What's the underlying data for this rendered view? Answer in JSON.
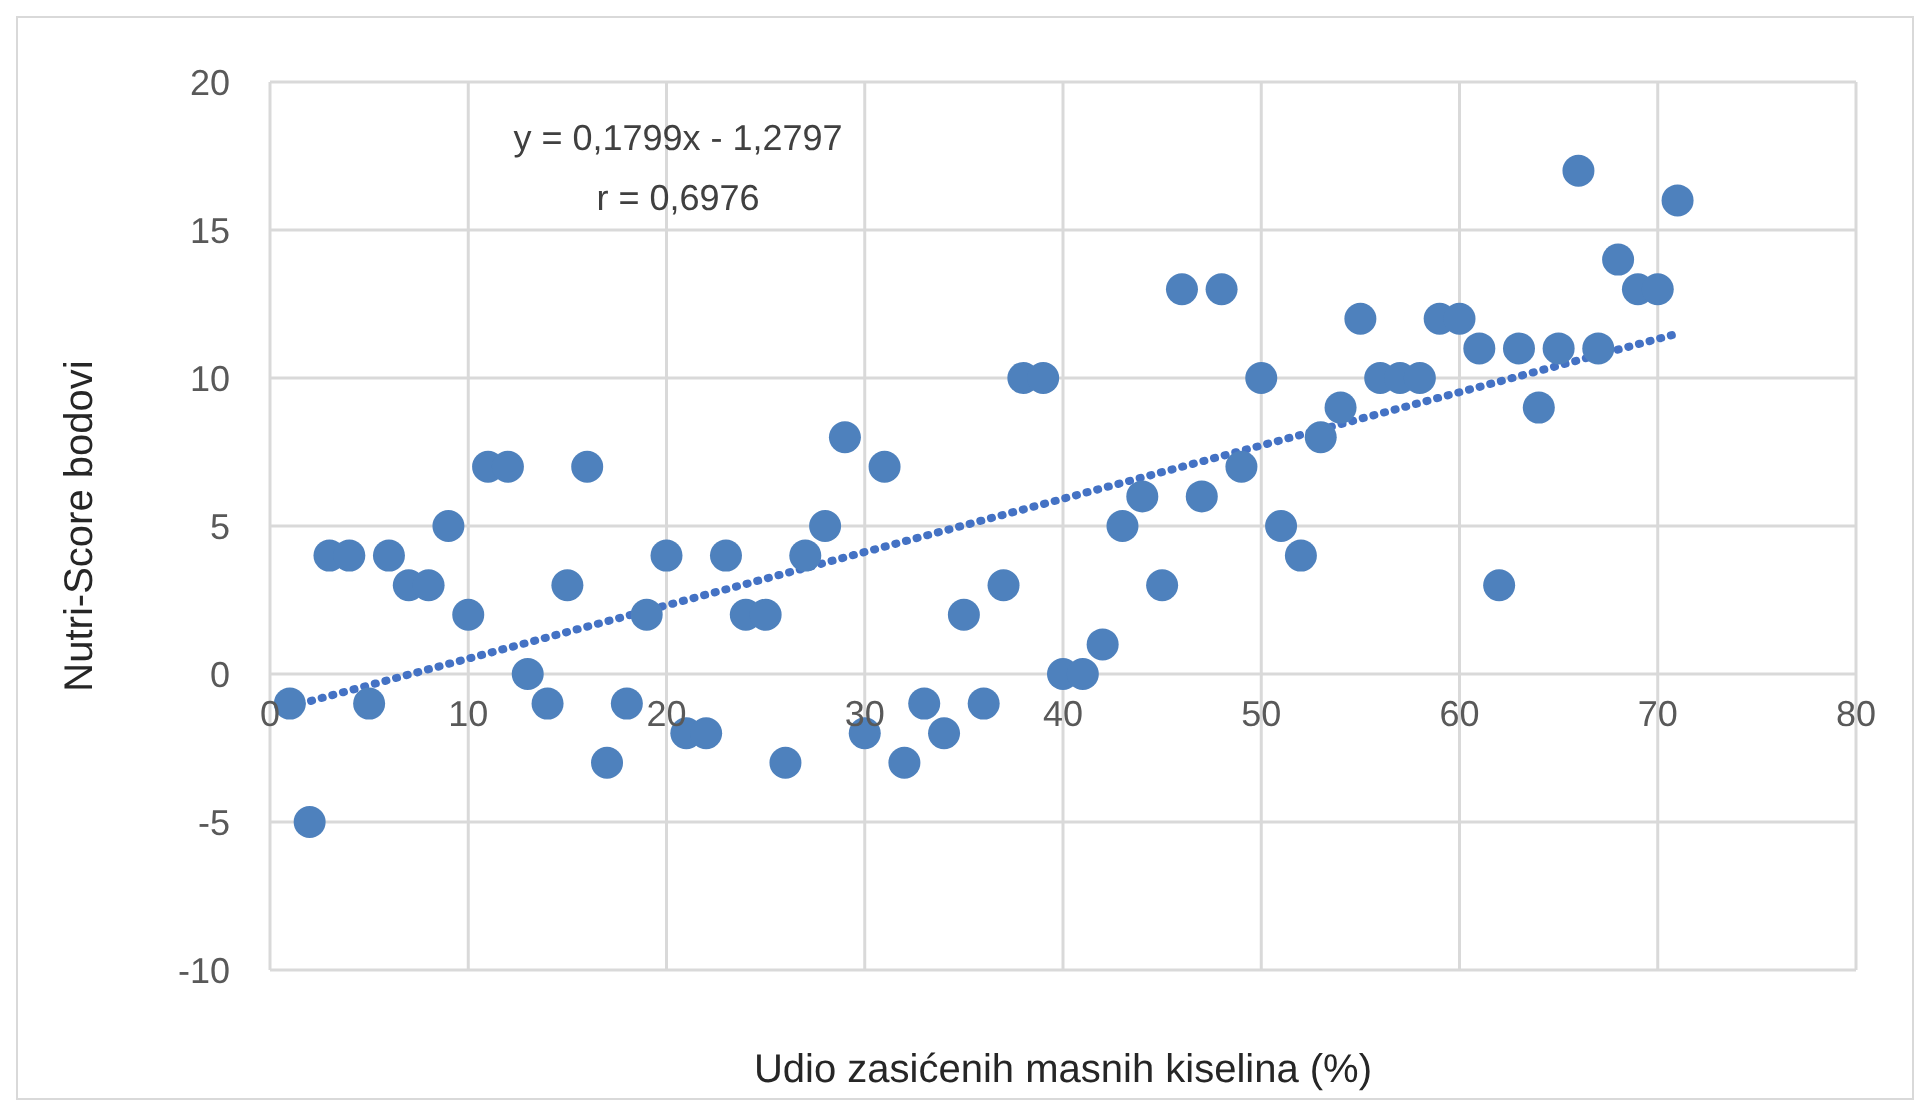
{
  "chart_data": {
    "type": "scatter",
    "xlabel": "Udio zasićenih masnih kiselina (%)",
    "ylabel": "Nutri-Score bodovi",
    "annotations": [
      "y = 0,1799x - 1,2797",
      "r = 0,6976"
    ],
    "xlim": [
      0,
      80
    ],
    "xticks": [
      0,
      10,
      20,
      30,
      40,
      50,
      60,
      70,
      80
    ],
    "ylim": [
      -10,
      20
    ],
    "yticks": [
      -10,
      -5,
      0,
      5,
      10,
      15,
      20
    ],
    "grid": true,
    "series": [
      {
        "marker": "circle",
        "color": "#4e81bd",
        "x": [
          1,
          2,
          3,
          4,
          5,
          6,
          7,
          8,
          9,
          10,
          11,
          12,
          13,
          14,
          15,
          16,
          17,
          18,
          19,
          20,
          21,
          22,
          23,
          24,
          25,
          26,
          27,
          28,
          29,
          30,
          31,
          32,
          33,
          34,
          35,
          36,
          37,
          38,
          39,
          40,
          41,
          42,
          43,
          44,
          45,
          46,
          47,
          48,
          49,
          50,
          51,
          52,
          53,
          54,
          55,
          56,
          57,
          58,
          59,
          60,
          61,
          62,
          63,
          64,
          65,
          66,
          67,
          68,
          69,
          70,
          71
        ],
        "values": [
          -1,
          -5,
          4,
          4,
          -1,
          4,
          3,
          3,
          5,
          2,
          7,
          7,
          0,
          -1,
          3,
          7,
          -3,
          -1,
          2,
          4,
          -2,
          -2,
          4,
          2,
          2,
          -3,
          4,
          5,
          8,
          -2,
          7,
          -3,
          -1,
          -2,
          2,
          -1,
          3,
          10,
          10,
          0,
          0,
          1,
          5,
          6,
          3,
          13,
          6,
          13,
          7,
          10,
          5,
          4,
          8,
          9,
          12,
          10,
          10,
          10,
          12,
          12,
          11,
          3,
          11,
          9,
          11,
          17,
          11,
          14,
          13,
          13,
          16
        ]
      },
      {
        "type": "line",
        "marker": "none",
        "color": "#4472c4",
        "line_style": "dotted",
        "x": [
          1,
          71
        ],
        "values": [
          -1.1,
          11.5
        ]
      }
    ]
  }
}
